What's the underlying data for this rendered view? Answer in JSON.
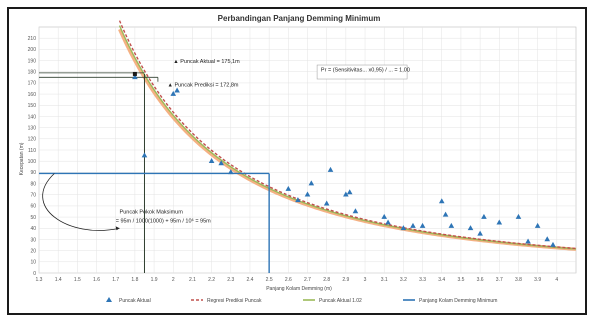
{
  "chart_data": {
    "type": "scatter",
    "title": "Perbandingan Panjang Demming Minimum",
    "xlabel": "Panjang Kolam Demming (m)",
    "ylabel": "Kecepatan (m)",
    "xlim": [
      1.3,
      4.1
    ],
    "ylim": [
      0,
      220
    ],
    "x_ticks": [
      "1.3",
      "1.4",
      "1.5",
      "1.6",
      "1.7",
      "1.8",
      "1.9",
      "2",
      "2.1",
      "2.2",
      "2.3",
      "2.4",
      "2.5",
      "2.6",
      "2.7",
      "2.8",
      "2.9",
      "3",
      "3.1",
      "3.2",
      "3.3",
      "3.4",
      "3.5",
      "3.6",
      "3.7",
      "3.8",
      "3.9",
      "4"
    ],
    "y_ticks": [
      "0",
      "10",
      "20",
      "30",
      "40",
      "50",
      "60",
      "70",
      "80",
      "90",
      "100",
      "110",
      "120",
      "130",
      "140",
      "150",
      "160",
      "170",
      "180",
      "190",
      "200",
      "210"
    ],
    "grid": true,
    "series": [
      {
        "name": "Puncak Aktual",
        "color": "#2e75b6",
        "marker": "triangle",
        "points": [
          [
            1.8,
            175
          ],
          [
            1.85,
            105
          ],
          [
            2.0,
            160
          ],
          [
            2.02,
            163
          ],
          [
            2.2,
            100
          ],
          [
            2.25,
            98
          ],
          [
            2.3,
            90
          ],
          [
            2.6,
            75
          ],
          [
            2.65,
            65
          ],
          [
            2.7,
            70
          ],
          [
            2.72,
            80
          ],
          [
            2.8,
            62
          ],
          [
            2.82,
            92
          ],
          [
            2.9,
            70
          ],
          [
            2.92,
            72
          ],
          [
            2.95,
            55
          ],
          [
            3.1,
            50
          ],
          [
            3.12,
            45
          ],
          [
            3.2,
            40
          ],
          [
            3.25,
            42
          ],
          [
            3.3,
            42
          ],
          [
            3.4,
            64
          ],
          [
            3.42,
            52
          ],
          [
            3.45,
            42
          ],
          [
            3.55,
            40
          ],
          [
            3.6,
            35
          ],
          [
            3.62,
            50
          ],
          [
            3.7,
            45
          ],
          [
            3.8,
            50
          ],
          [
            3.85,
            28
          ],
          [
            3.9,
            42
          ],
          [
            3.95,
            30
          ],
          [
            3.98,
            25
          ]
        ]
      },
      {
        "name": "Regresi Prediksi Puncak",
        "color": "#c0504d",
        "dash": true,
        "a": 2.306,
        "b": 21.7
      },
      {
        "name": "Puncak Aktual 1.02",
        "color": "#9bbb59"
      },
      {
        "name": "Panjang Kolam Demming Minimum",
        "color": "#2e75b6"
      }
    ],
    "annotations": [
      {
        "id": "actual",
        "text": "Puncak Aktual = 175,1m"
      },
      {
        "id": "predicted",
        "text": "Puncak Prediksi = 172,8m"
      },
      {
        "id": "formula",
        "text": "Pr = (Sensitivitas... x0,95) / ... = 1,00"
      },
      {
        "id": "max",
        "text": "Puncak Pokok Maksimum",
        "formula": "= 95m / 1000(1000) + 95m / 10⁶ = 95m"
      }
    ],
    "markers": {
      "vertical_line_x": 1.85,
      "blue_box_x": 2.5,
      "blue_box_y": 89,
      "curly_y": 89
    },
    "legend_position": "bottom"
  }
}
